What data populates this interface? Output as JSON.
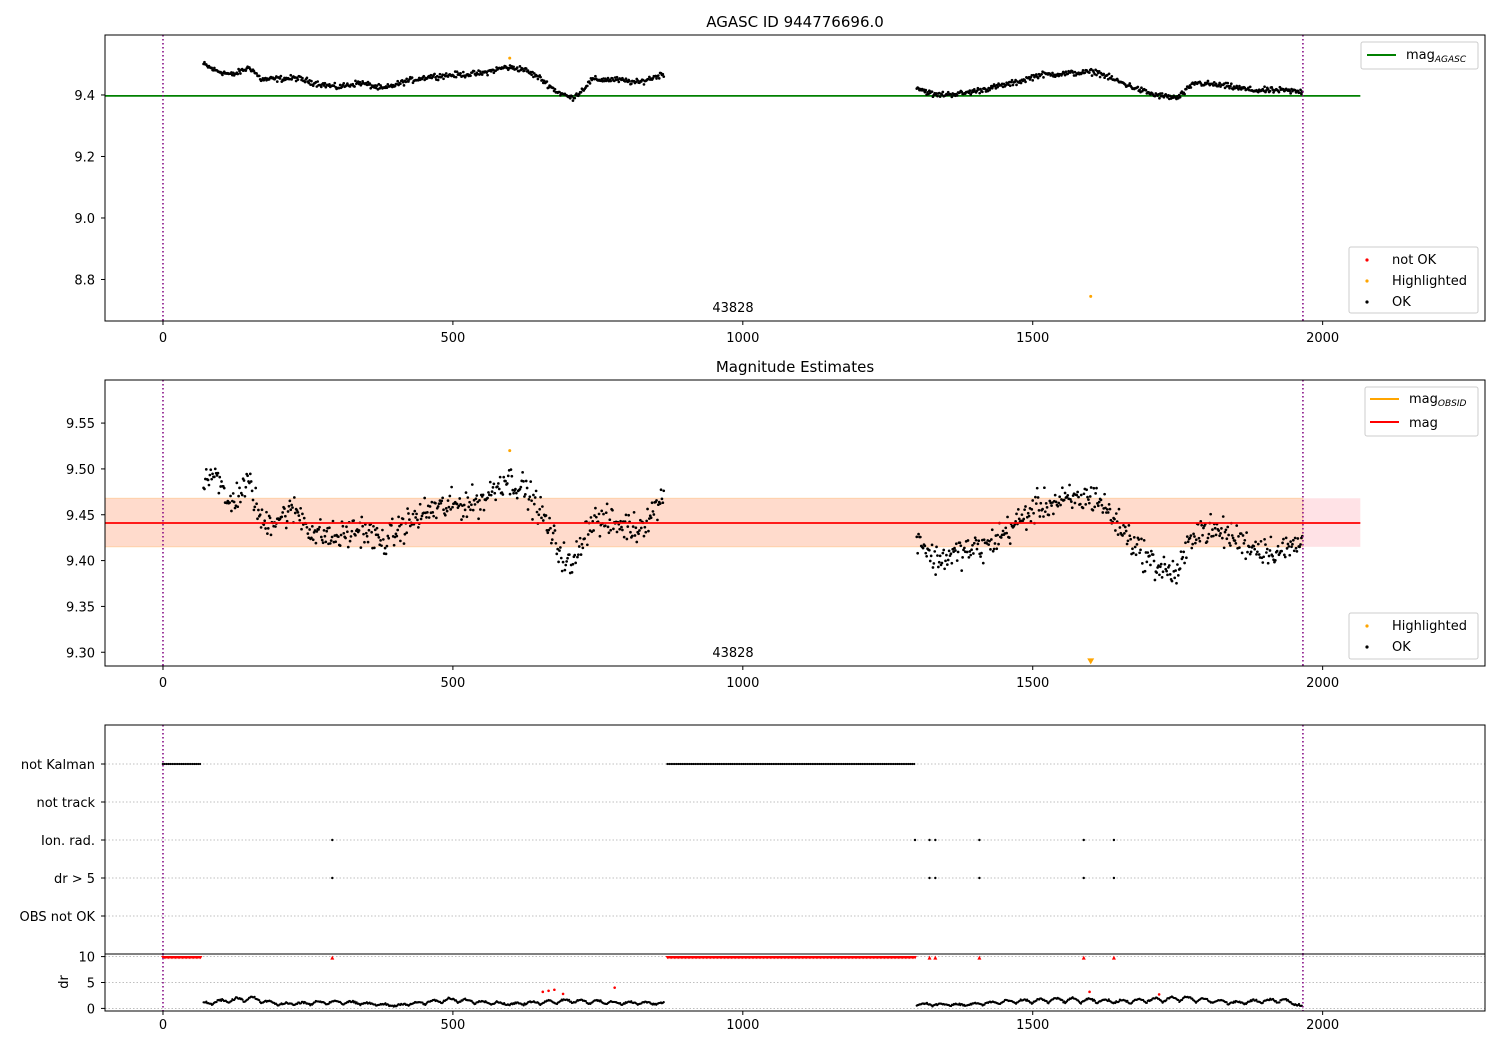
{
  "chart_data": [
    {
      "id": "mag-agasc",
      "type": "scatter",
      "title": "AGASC ID 944776696.0",
      "xlim": [
        -100,
        2280
      ],
      "ylim": [
        8.665,
        9.595
      ],
      "x_ticks": [
        0,
        500,
        1000,
        1500,
        2000
      ],
      "y_ticks": [
        8.8,
        9.0,
        9.2,
        9.4
      ],
      "y_tick_labels": [
        "8.8",
        "9.0",
        "9.2",
        "9.4"
      ],
      "annotation": {
        "text": "43828",
        "x": 980
      },
      "vlines": [
        0,
        1966
      ],
      "hline": {
        "name": "mag",
        "subscript": "AGASC",
        "value": 9.397,
        "x": [
          -100,
          2065
        ],
        "color": "#008000"
      },
      "legend_lines": [
        {
          "name": "mag",
          "subscript": "AGASC",
          "color": "#008000"
        }
      ],
      "legend_points": [
        {
          "label": "not OK",
          "color": "#ff0000"
        },
        {
          "label": "Highlighted",
          "color": "#ffa500"
        },
        {
          "label": "OK",
          "color": "#000000"
        }
      ],
      "segments": [
        [
          70,
          865
        ],
        [
          1300,
          1965
        ]
      ],
      "trend": [
        [
          70,
          9.5
        ],
        [
          90,
          9.48
        ],
        [
          120,
          9.465
        ],
        [
          150,
          9.49
        ],
        [
          170,
          9.45
        ],
        [
          230,
          9.455
        ],
        [
          260,
          9.44
        ],
        [
          300,
          9.425
        ],
        [
          340,
          9.44
        ],
        [
          380,
          9.42
        ],
        [
          420,
          9.445
        ],
        [
          460,
          9.46
        ],
        [
          500,
          9.465
        ],
        [
          550,
          9.47
        ],
        [
          590,
          9.49
        ],
        [
          620,
          9.485
        ],
        [
          650,
          9.455
        ],
        [
          680,
          9.41
        ],
        [
          705,
          9.39
        ],
        [
          720,
          9.41
        ],
        [
          740,
          9.45
        ],
        [
          780,
          9.45
        ],
        [
          820,
          9.44
        ],
        [
          865,
          9.47
        ],
        [
          1300,
          9.425
        ],
        [
          1330,
          9.4
        ],
        [
          1380,
          9.405
        ],
        [
          1420,
          9.42
        ],
        [
          1470,
          9.44
        ],
        [
          1510,
          9.465
        ],
        [
          1560,
          9.47
        ],
        [
          1610,
          9.475
        ],
        [
          1640,
          9.45
        ],
        [
          1680,
          9.42
        ],
        [
          1710,
          9.4
        ],
        [
          1750,
          9.39
        ],
        [
          1780,
          9.44
        ],
        [
          1830,
          9.43
        ],
        [
          1880,
          9.415
        ],
        [
          1930,
          9.415
        ],
        [
          1965,
          9.41
        ]
      ],
      "noise": 0.008,
      "highlighted_points": [
        [
          598,
          9.52
        ],
        [
          1600,
          8.745
        ]
      ],
      "not_ok_points": []
    },
    {
      "id": "mag-estimates",
      "type": "scatter",
      "title": "Magnitude Estimates",
      "xlim": [
        -100,
        2280
      ],
      "ylim": [
        9.285,
        9.597
      ],
      "x_ticks": [
        0,
        500,
        1000,
        1500,
        2000
      ],
      "y_ticks": [
        9.3,
        9.35,
        9.4,
        9.45,
        9.5,
        9.55
      ],
      "y_tick_labels": [
        "9.30",
        "9.35",
        "9.40",
        "9.45",
        "9.50",
        "9.55"
      ],
      "annotation": {
        "text": "43828",
        "x": 980
      },
      "vlines": [
        0,
        1966
      ],
      "hline": {
        "name": "mag",
        "value": 9.441,
        "x": [
          -100,
          2065
        ],
        "color": "#ff0000"
      },
      "band": {
        "y": [
          9.415,
          9.468
        ],
        "x": [
          -100,
          2065
        ],
        "split_x": 1966
      },
      "legend_lines": [
        {
          "name": "mag",
          "subscript": "OBSID",
          "color": "#ffa500"
        },
        {
          "name": "mag",
          "color": "#ff0000"
        }
      ],
      "legend_points": [
        {
          "label": "Highlighted",
          "color": "#ffa500"
        },
        {
          "label": "OK",
          "color": "#000000"
        }
      ],
      "segments": [
        [
          70,
          865
        ],
        [
          1300,
          1965
        ]
      ],
      "trend": [
        [
          70,
          9.49
        ],
        [
          90,
          9.5
        ],
        [
          110,
          9.46
        ],
        [
          150,
          9.485
        ],
        [
          170,
          9.44
        ],
        [
          230,
          9.455
        ],
        [
          260,
          9.43
        ],
        [
          300,
          9.425
        ],
        [
          340,
          9.435
        ],
        [
          380,
          9.42
        ],
        [
          420,
          9.44
        ],
        [
          460,
          9.455
        ],
        [
          500,
          9.46
        ],
        [
          550,
          9.465
        ],
        [
          590,
          9.49
        ],
        [
          620,
          9.48
        ],
        [
          650,
          9.455
        ],
        [
          680,
          9.415
        ],
        [
          705,
          9.39
        ],
        [
          720,
          9.42
        ],
        [
          740,
          9.445
        ],
        [
          780,
          9.44
        ],
        [
          820,
          9.435
        ],
        [
          865,
          9.47
        ],
        [
          1300,
          9.43
        ],
        [
          1330,
          9.4
        ],
        [
          1380,
          9.41
        ],
        [
          1420,
          9.415
        ],
        [
          1470,
          9.44
        ],
        [
          1510,
          9.46
        ],
        [
          1560,
          9.465
        ],
        [
          1610,
          9.47
        ],
        [
          1640,
          9.445
        ],
        [
          1680,
          9.415
        ],
        [
          1710,
          9.395
        ],
        [
          1750,
          9.385
        ],
        [
          1780,
          9.435
        ],
        [
          1830,
          9.43
        ],
        [
          1880,
          9.415
        ],
        [
          1930,
          9.41
        ],
        [
          1965,
          9.42
        ]
      ],
      "noise": 0.014,
      "highlighted_points": [
        [
          598,
          9.52
        ]
      ],
      "highlighted_markers": [
        [
          1600,
          9.29
        ]
      ],
      "not_ok_points": []
    },
    {
      "id": "flags",
      "type": "scatter",
      "xlim": [
        -100,
        2280
      ],
      "categories": [
        "not Kalman",
        "not track",
        "Ion. rad.",
        "dr > 5",
        "OBS not OK"
      ],
      "flag_runs": [
        {
          "category": "not Kalman",
          "ranges": [
            [
              0,
              65
            ],
            [
              870,
              1298
            ]
          ]
        }
      ],
      "flag_points": [
        {
          "category": "Ion. rad.",
          "x": [
            292,
            1297,
            1322,
            1332,
            1408,
            1588,
            1640
          ]
        },
        {
          "category": "dr > 5",
          "x": [
            292,
            1322,
            1332,
            1408,
            1588,
            1640
          ]
        }
      ],
      "vlines": [
        0,
        1966
      ]
    },
    {
      "id": "dr",
      "type": "scatter",
      "xlim": [
        -100,
        2280
      ],
      "ylim": [
        -0.5,
        10.5
      ],
      "ylabel": "dr",
      "x_ticks": [
        0,
        500,
        1000,
        1500,
        2000
      ],
      "y_ticks": [
        0,
        5,
        10
      ],
      "y_tick_labels": [
        "0",
        "5",
        "10"
      ],
      "vlines": [
        0,
        1966
      ],
      "capped_runs": [
        [
          0,
          65
        ],
        [
          870,
          1298
        ]
      ],
      "capped_points": [
        292,
        1322,
        1332,
        1408,
        1588,
        1640
      ],
      "capped_value": 9.8,
      "segments": [
        [
          70,
          865
        ],
        [
          1300,
          1965
        ]
      ],
      "dr_base": [
        [
          70,
          1.2
        ],
        [
          150,
          2.3
        ],
        [
          200,
          1.0
        ],
        [
          300,
          1.5
        ],
        [
          400,
          0.7
        ],
        [
          500,
          2.0
        ],
        [
          600,
          1.0
        ],
        [
          700,
          1.8
        ],
        [
          780,
          1.3
        ],
        [
          865,
          1.2
        ],
        [
          1300,
          1.0
        ],
        [
          1380,
          0.8
        ],
        [
          1450,
          1.5
        ],
        [
          1550,
          2.0
        ],
        [
          1650,
          1.6
        ],
        [
          1760,
          2.3
        ],
        [
          1850,
          1.3
        ],
        [
          1930,
          2.0
        ],
        [
          1965,
          0.5
        ]
      ],
      "red_points": [
        [
          655,
          3.2
        ],
        [
          665,
          3.4
        ],
        [
          675,
          3.6
        ],
        [
          690,
          2.8
        ],
        [
          779,
          4.0
        ],
        [
          1598,
          3.2
        ],
        [
          1718,
          2.7
        ]
      ]
    }
  ]
}
